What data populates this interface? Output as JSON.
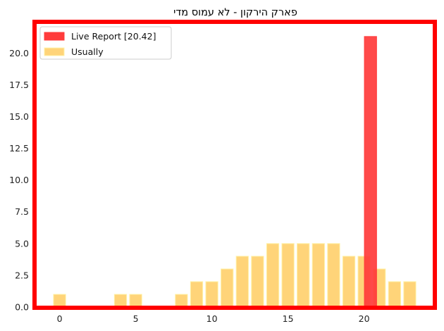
{
  "chart_data": {
    "type": "bar",
    "title": "פארק הירקון - לא עמוס מדי",
    "xlabel": "",
    "ylabel": "",
    "xlim": [
      -1.6,
      24.6
    ],
    "ylim": [
      0,
      22.4
    ],
    "x_ticks": [
      0,
      5,
      10,
      15,
      20
    ],
    "x_tick_labels": [
      "0",
      "5",
      "10",
      "15",
      "20"
    ],
    "y_ticks": [
      0,
      2.5,
      5,
      7.5,
      10,
      12.5,
      15,
      17.5,
      20
    ],
    "y_tick_labels": [
      "0.0",
      "2.5",
      "5.0",
      "7.5",
      "10.0",
      "12.5",
      "15.0",
      "17.5",
      "20.0"
    ],
    "grid": false,
    "legend_position": "top-left",
    "frame_color": "#ff0000",
    "series": [
      {
        "name": "Usually",
        "color": "#ffd479",
        "edge_color": "#fff2a8",
        "bar_width": 0.8,
        "x": [
          0,
          4,
          5,
          8,
          9,
          10,
          11,
          12,
          13,
          14,
          15,
          16,
          17,
          18,
          19,
          20,
          21,
          22,
          23
        ],
        "values": [
          1,
          1,
          1,
          1,
          2,
          2,
          3,
          4,
          4,
          5,
          5,
          5,
          5,
          5,
          4,
          4,
          3,
          2,
          2
        ]
      },
      {
        "name": "Live Report [20.42]",
        "color": "#ff3b3b",
        "edge_color": "#ff3b3b",
        "bar_width": 0.8,
        "x": [
          20.42
        ],
        "values": [
          21.3
        ]
      }
    ]
  }
}
